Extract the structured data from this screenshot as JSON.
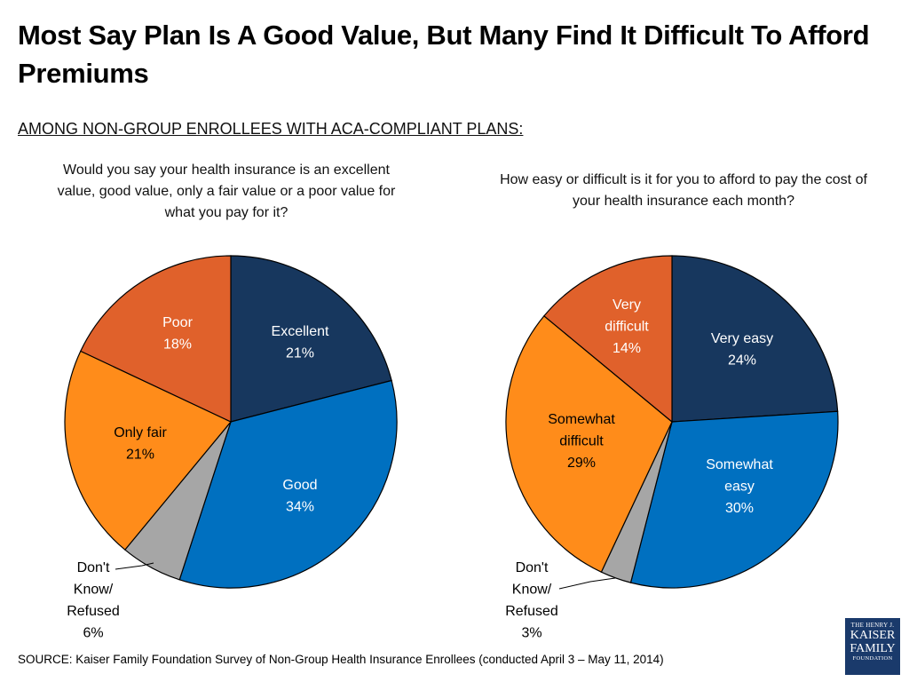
{
  "header": {
    "title": "Most Say Plan Is A Good Value, But Many Find It Difficult To Afford Premiums",
    "subtitle": "AMONG NON-GROUP ENROLLEES WITH ACA-COMPLIANT PLANS:"
  },
  "chart_data": [
    {
      "type": "pie",
      "title": "Would you say your health insurance is an excellent value, good value, only a fair value or a poor value for what you pay for it?",
      "unit": "%",
      "slices": [
        {
          "label": "Excellent",
          "value": 21,
          "color": "#17375e",
          "text_color": "#ffffff"
        },
        {
          "label": "Good",
          "value": 34,
          "color": "#0070c0",
          "text_color": "#ffffff"
        },
        {
          "label": "Don't Know/ Refused",
          "value": 6,
          "color": "#a6a6a6",
          "text_color": "#000000"
        },
        {
          "label": "Only fair",
          "value": 21,
          "color": "#ff8c1a",
          "text_color": "#000000"
        },
        {
          "label": "Poor",
          "value": 18,
          "color": "#e0612b",
          "text_color": "#ffffff"
        }
      ]
    },
    {
      "type": "pie",
      "title": "How easy or difficult is it for you to afford to pay the cost of your health insurance each month?",
      "unit": "%",
      "slices": [
        {
          "label": "Very easy",
          "value": 24,
          "color": "#17375e",
          "text_color": "#ffffff"
        },
        {
          "label": "Somewhat easy",
          "value": 30,
          "color": "#0070c0",
          "text_color": "#ffffff"
        },
        {
          "label": "Don't Know/ Refused",
          "value": 3,
          "color": "#a6a6a6",
          "text_color": "#000000"
        },
        {
          "label": "Somewhat difficult",
          "value": 29,
          "color": "#ff8c1a",
          "text_color": "#000000"
        },
        {
          "label": "Very difficult",
          "value": 14,
          "color": "#e0612b",
          "text_color": "#ffffff"
        }
      ]
    }
  ],
  "footer": {
    "source": "SOURCE: Kaiser Family Foundation Survey of Non-Group Health Insurance Enrollees  (conducted April 3 – May 11, 2014)",
    "logo_line1": "THE HENRY J.",
    "logo_line2": "KAISER",
    "logo_line3": "FAMILY",
    "logo_line4": "FOUNDATION"
  }
}
